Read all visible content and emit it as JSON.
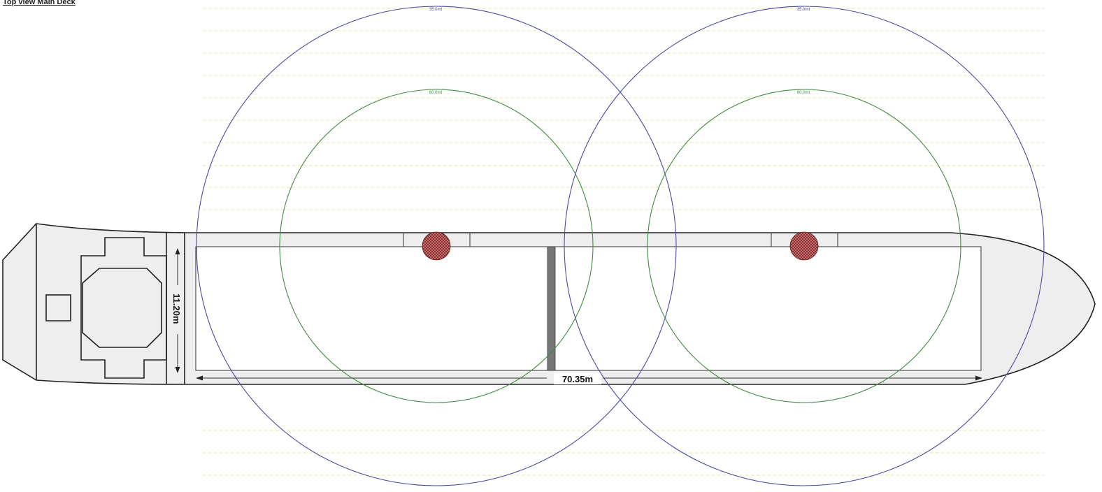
{
  "title": "Top view Main Deck",
  "dimensions": {
    "width_label": "11.20m",
    "length_label": "70.35m"
  },
  "cranes": [
    {
      "id": "crane-1",
      "outer_radius_label": "35.0mt",
      "inner_radius_label": "60.0mt"
    },
    {
      "id": "crane-2",
      "outer_radius_label": "35.0mt",
      "inner_radius_label": "60.0mt"
    }
  ],
  "colors": {
    "outer_radius": "#4a4aa3",
    "inner_radius": "#3f8a3f",
    "crane_pedestal": "#8b1a1a",
    "hull_fill": "#eeeeee",
    "bulkhead": "#777777"
  }
}
